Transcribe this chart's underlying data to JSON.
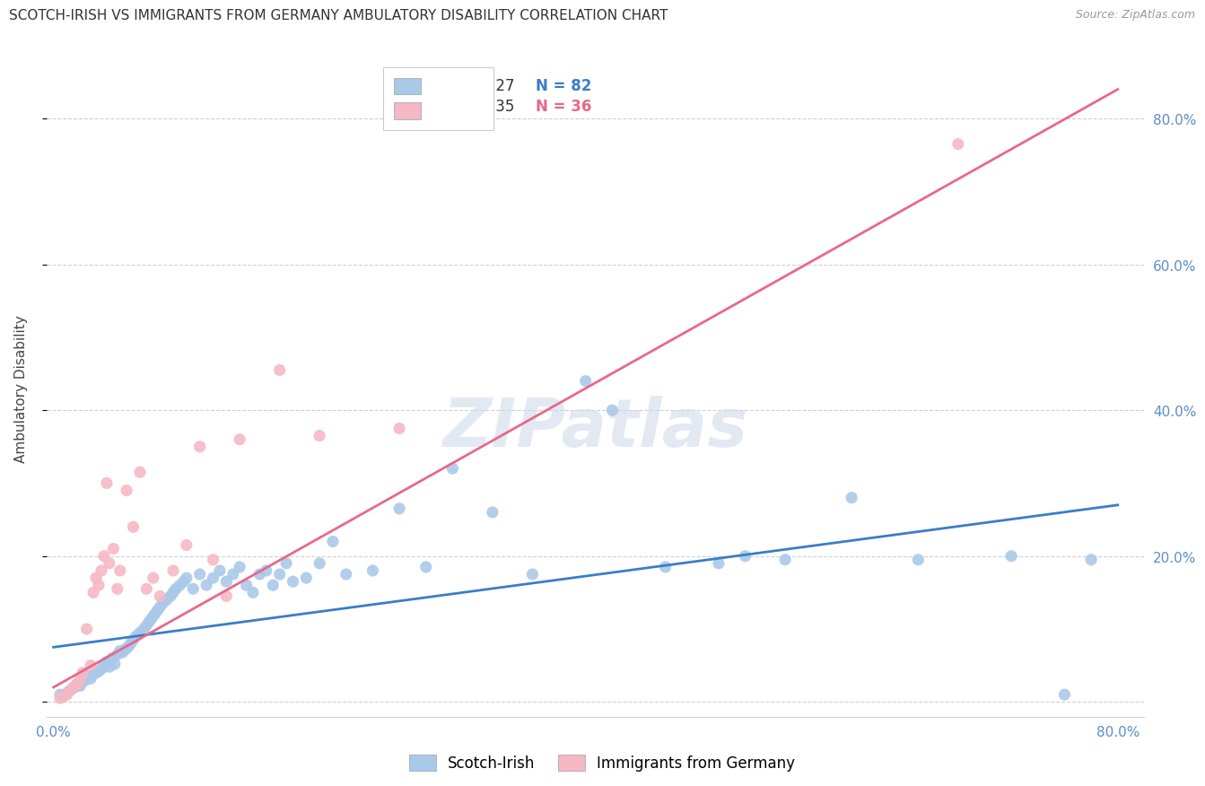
{
  "title": "SCOTCH-IRISH VS IMMIGRANTS FROM GERMANY AMBULATORY DISABILITY CORRELATION CHART",
  "source": "Source: ZipAtlas.com",
  "ylabel": "Ambulatory Disability",
  "xlim": [
    -0.005,
    0.82
  ],
  "ylim": [
    -0.02,
    0.88
  ],
  "blue_R": 0.327,
  "blue_N": 82,
  "pink_R": 0.835,
  "pink_N": 36,
  "blue_color": "#aac9e8",
  "pink_color": "#f5b8c4",
  "blue_line_color": "#3a7dc9",
  "pink_line_color": "#e8688a",
  "legend_blue_label": "Scotch-Irish",
  "legend_pink_label": "Immigrants from Germany",
  "watermark": "ZIPatlas",
  "blue_line_x0": 0.0,
  "blue_line_y0": 0.075,
  "blue_line_x1": 0.8,
  "blue_line_y1": 0.27,
  "pink_line_x0": 0.0,
  "pink_line_y0": 0.02,
  "pink_line_x1": 0.8,
  "pink_line_y1": 0.84,
  "blue_x": [
    0.005,
    0.008,
    0.01,
    0.012,
    0.014,
    0.016,
    0.018,
    0.02,
    0.022,
    0.024,
    0.026,
    0.028,
    0.03,
    0.032,
    0.034,
    0.036,
    0.038,
    0.04,
    0.042,
    0.044,
    0.046,
    0.048,
    0.05,
    0.052,
    0.054,
    0.056,
    0.058,
    0.06,
    0.062,
    0.065,
    0.068,
    0.07,
    0.072,
    0.074,
    0.076,
    0.078,
    0.08,
    0.082,
    0.085,
    0.088,
    0.09,
    0.092,
    0.095,
    0.098,
    0.1,
    0.105,
    0.11,
    0.115,
    0.12,
    0.125,
    0.13,
    0.135,
    0.14,
    0.145,
    0.15,
    0.155,
    0.16,
    0.165,
    0.17,
    0.175,
    0.18,
    0.19,
    0.2,
    0.21,
    0.22,
    0.24,
    0.26,
    0.28,
    0.3,
    0.33,
    0.36,
    0.4,
    0.42,
    0.46,
    0.5,
    0.52,
    0.55,
    0.6,
    0.65,
    0.72,
    0.76,
    0.78
  ],
  "blue_y": [
    0.01,
    0.008,
    0.012,
    0.015,
    0.018,
    0.02,
    0.025,
    0.022,
    0.028,
    0.03,
    0.035,
    0.032,
    0.038,
    0.04,
    0.042,
    0.045,
    0.05,
    0.055,
    0.048,
    0.06,
    0.052,
    0.065,
    0.07,
    0.068,
    0.072,
    0.075,
    0.08,
    0.085,
    0.09,
    0.095,
    0.1,
    0.105,
    0.11,
    0.115,
    0.12,
    0.125,
    0.13,
    0.135,
    0.14,
    0.145,
    0.15,
    0.155,
    0.16,
    0.165,
    0.17,
    0.155,
    0.175,
    0.16,
    0.17,
    0.18,
    0.165,
    0.175,
    0.185,
    0.16,
    0.15,
    0.175,
    0.18,
    0.16,
    0.175,
    0.19,
    0.165,
    0.17,
    0.19,
    0.22,
    0.175,
    0.18,
    0.265,
    0.185,
    0.32,
    0.26,
    0.175,
    0.44,
    0.4,
    0.185,
    0.19,
    0.2,
    0.195,
    0.28,
    0.195,
    0.2,
    0.01,
    0.195
  ],
  "pink_x": [
    0.005,
    0.008,
    0.01,
    0.012,
    0.015,
    0.018,
    0.02,
    0.022,
    0.025,
    0.028,
    0.03,
    0.032,
    0.034,
    0.036,
    0.038,
    0.04,
    0.042,
    0.045,
    0.048,
    0.05,
    0.055,
    0.06,
    0.065,
    0.07,
    0.075,
    0.08,
    0.09,
    0.1,
    0.11,
    0.12,
    0.13,
    0.14,
    0.17,
    0.2,
    0.26,
    0.68
  ],
  "pink_y": [
    0.005,
    0.008,
    0.01,
    0.015,
    0.02,
    0.025,
    0.03,
    0.04,
    0.1,
    0.05,
    0.15,
    0.17,
    0.16,
    0.18,
    0.2,
    0.3,
    0.19,
    0.21,
    0.155,
    0.18,
    0.29,
    0.24,
    0.315,
    0.155,
    0.17,
    0.145,
    0.18,
    0.215,
    0.35,
    0.195,
    0.145,
    0.36,
    0.455,
    0.365,
    0.375,
    0.765
  ]
}
